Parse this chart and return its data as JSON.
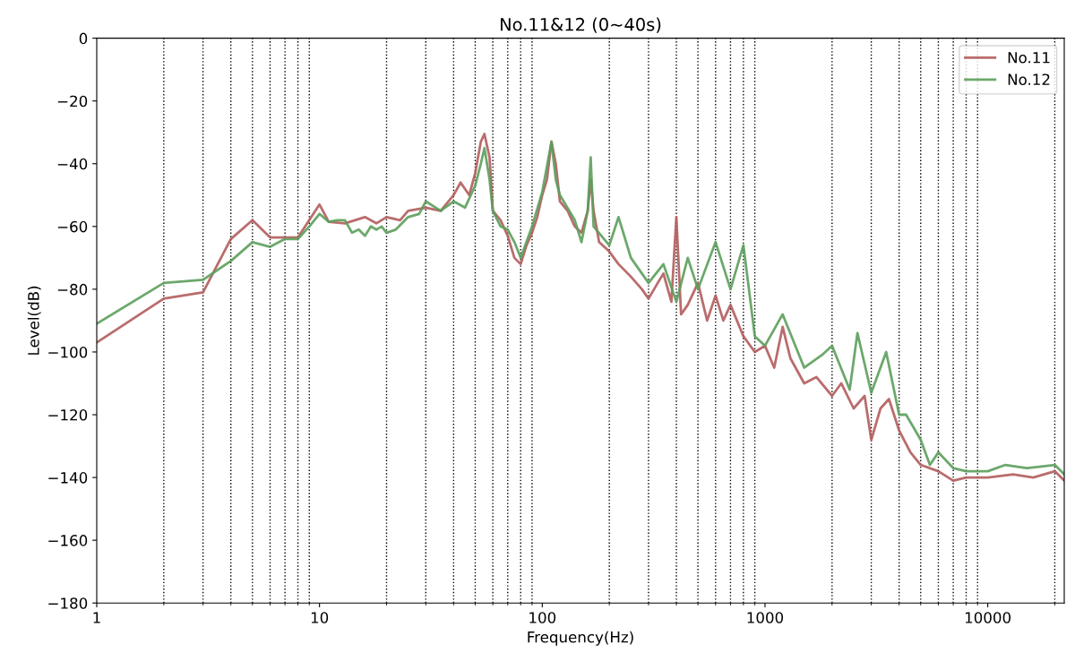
{
  "chart_data": {
    "type": "line",
    "title": "No.11&12 (0~40s)",
    "xlabel": "Frequency(Hz)",
    "ylabel": "Level(dB)",
    "log": "x",
    "grid": "x",
    "legend": "top right",
    "line_style": "solid",
    "marker": "none",
    "xlim": [
      1,
      22050
    ],
    "xticks": [
      1,
      10,
      100,
      1000,
      10000
    ],
    "ylim": [
      -180,
      0
    ],
    "yticks": [
      -180,
      -160,
      -140,
      -120,
      -100,
      -80,
      -60,
      -40,
      -20,
      0
    ],
    "series": [
      {
        "name": "No.11",
        "color": "#b35c5c",
        "x": [
          1,
          2,
          3,
          4,
          5,
          6,
          8,
          10,
          11,
          13,
          16,
          18,
          20,
          23,
          25,
          30,
          35,
          40,
          43,
          47,
          50,
          53,
          55,
          58,
          60,
          65,
          70,
          75,
          80,
          85,
          90,
          95,
          100,
          105,
          110,
          115,
          120,
          130,
          140,
          150,
          160,
          165,
          170,
          180,
          200,
          220,
          250,
          280,
          300,
          330,
          350,
          380,
          400,
          420,
          450,
          500,
          550,
          600,
          650,
          700,
          800,
          900,
          1000,
          1100,
          1200,
          1300,
          1500,
          1700,
          2000,
          2200,
          2500,
          2800,
          3000,
          3300,
          3600,
          4000,
          4500,
          5000,
          6000,
          7000,
          8000,
          10000,
          13000,
          16000,
          20000,
          22050
        ],
        "values": [
          -97,
          -83,
          -81,
          -64,
          -58,
          -63.5,
          -63.5,
          -53,
          -58.5,
          -59,
          -57,
          -59,
          -57,
          -58,
          -55,
          -54,
          -55,
          -50,
          -46,
          -50,
          -43,
          -33,
          -30.5,
          -38,
          -55,
          -58,
          -63,
          -70,
          -72,
          -66,
          -62,
          -57,
          -50,
          -45,
          -33,
          -40,
          -52,
          -55,
          -60,
          -62,
          -55,
          -45,
          -55,
          -65,
          -68,
          -72,
          -76,
          -80,
          -83,
          -78,
          -75,
          -84,
          -57,
          -88,
          -85,
          -78,
          -90,
          -82,
          -90,
          -85,
          -95,
          -100,
          -98,
          -105,
          -92,
          -102,
          -110,
          -108,
          -114,
          -110,
          -118,
          -114,
          -128,
          -118,
          -115,
          -125,
          -132,
          -136,
          -138,
          -141,
          -140,
          -140,
          -139,
          -140,
          -138,
          -141
        ]
      },
      {
        "name": "No.12",
        "color": "#5c9e5c",
        "x": [
          1,
          2,
          3,
          4,
          5,
          6,
          7,
          8,
          9,
          10,
          11,
          12,
          13,
          14,
          15,
          16,
          17,
          18,
          19,
          20,
          22,
          25,
          28,
          30,
          35,
          40,
          45,
          50,
          53,
          55,
          58,
          60,
          65,
          70,
          75,
          80,
          90,
          100,
          110,
          115,
          120,
          140,
          150,
          160,
          165,
          170,
          200,
          220,
          250,
          300,
          350,
          400,
          450,
          500,
          600,
          700,
          800,
          900,
          1000,
          1200,
          1500,
          1800,
          2000,
          2400,
          2600,
          3000,
          3500,
          4000,
          4300,
          5000,
          5500,
          6000,
          7000,
          8000,
          10000,
          12000,
          15000,
          20000,
          22050
        ],
        "values": [
          -91,
          -78,
          -77,
          -71,
          -65,
          -66.5,
          -64,
          -64,
          -60,
          -56,
          -58.5,
          -58,
          -58,
          -62,
          -61,
          -63,
          -60,
          -61,
          -60,
          -62,
          -61,
          -57,
          -56,
          -52,
          -55,
          -52,
          -54,
          -47,
          -40,
          -35,
          -45,
          -55,
          -60,
          -61,
          -65,
          -70,
          -60,
          -49,
          -33,
          -45,
          -50,
          -58,
          -65,
          -55,
          -38,
          -60,
          -66,
          -57,
          -70,
          -78,
          -72,
          -84,
          -70,
          -80,
          -65,
          -80,
          -66,
          -95,
          -98,
          -88,
          -105,
          -101,
          -98,
          -112,
          -94,
          -113,
          -100,
          -120,
          -120,
          -128,
          -136,
          -132,
          -137,
          -138,
          -138,
          -136,
          -137,
          -136,
          -139
        ]
      }
    ]
  }
}
